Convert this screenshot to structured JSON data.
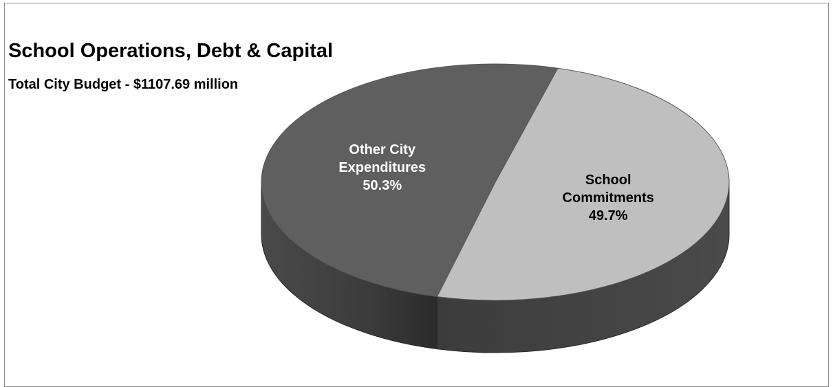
{
  "chart_data": {
    "type": "pie",
    "title": "School Operations, Debt & Capital",
    "subtitle": "Total City Budget - $1107.69 million",
    "three_d": true,
    "slices": [
      {
        "label_lines": [
          "School",
          "Commitments"
        ],
        "value_label": "49.7%",
        "value": 49.7,
        "color": "#bfbfbf",
        "side_color": "#444444",
        "label_color": "#000000"
      },
      {
        "label_lines": [
          "Other City",
          "Expenditures"
        ],
        "value_label": "50.3%",
        "value": 50.3,
        "color": "#5f5f5f",
        "side_color": "#3a3a3a",
        "label_color": "#ffffff"
      }
    ]
  }
}
